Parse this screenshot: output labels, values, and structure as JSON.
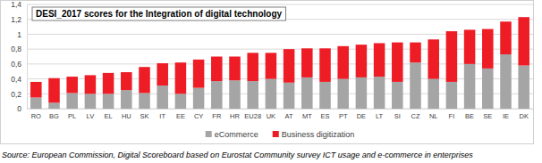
{
  "chart_data": {
    "type": "bar",
    "title": "DESI_2017 scores for the Integration of digital technology",
    "source": "Source: European Commission, Digital Scoreboard based on Eurostat Community  survey ICT usage and e-commerce in enterprises",
    "categories": [
      "RO",
      "BG",
      "PL",
      "LV",
      "EL",
      "HU",
      "SK",
      "IT",
      "EE",
      "CY",
      "FR",
      "HR",
      "EU28",
      "UK",
      "AT",
      "MT",
      "ES",
      "PT",
      "DE",
      "LT",
      "SI",
      "CZ",
      "NL",
      "FI",
      "BE",
      "SE",
      "IE",
      "DK"
    ],
    "series": [
      {
        "name": "eCommerce",
        "color": "#a5a5a5",
        "values": [
          0.15,
          0.08,
          0.21,
          0.2,
          0.2,
          0.25,
          0.21,
          0.31,
          0.2,
          0.28,
          0.37,
          0.38,
          0.37,
          0.4,
          0.35,
          0.42,
          0.36,
          0.4,
          0.42,
          0.43,
          0.36,
          0.62,
          0.4,
          0.36,
          0.6,
          0.54,
          0.73,
          0.58
        ]
      },
      {
        "name": "Business digitization",
        "color": "#ee1c25",
        "values": [
          0.21,
          0.33,
          0.22,
          0.25,
          0.28,
          0.24,
          0.35,
          0.3,
          0.42,
          0.38,
          0.33,
          0.32,
          0.38,
          0.35,
          0.45,
          0.39,
          0.45,
          0.44,
          0.44,
          0.45,
          0.53,
          0.27,
          0.53,
          0.68,
          0.46,
          0.53,
          0.44,
          0.65
        ]
      }
    ],
    "stacked": true,
    "ylim": [
      0,
      1.4
    ],
    "yticks": [
      0,
      {
        "value": 0.2,
        "label": "0,2"
      },
      {
        "value": 0.4,
        "label": "0,4"
      },
      {
        "value": 0.6,
        "label": "0,6"
      },
      {
        "value": 0.8,
        "label": "0,8"
      },
      1,
      {
        "value": 1.2,
        "label": "1,2"
      },
      {
        "value": 1.4,
        "label": "1,4"
      }
    ],
    "grid": true,
    "legend": "bottom"
  }
}
